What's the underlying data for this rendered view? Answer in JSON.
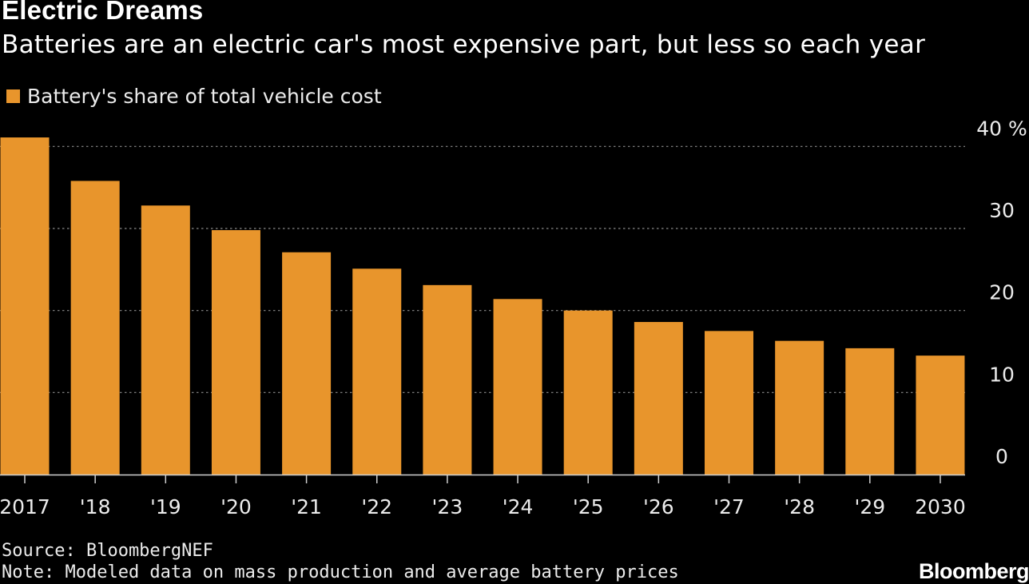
{
  "header": {
    "title": "Electric Dreams",
    "subtitle": "Batteries are an electric car's most expensive part, but less so each year"
  },
  "legend": {
    "label": "Battery's share of total vehicle cost",
    "color": "#e8952c"
  },
  "chart_data": {
    "type": "bar",
    "title": "Electric Dreams",
    "subtitle": "Batteries are an electric car's most expensive part, but less so each year",
    "categories": [
      "2017",
      "'18",
      "'19",
      "'20",
      "'21",
      "'22",
      "'23",
      "'24",
      "'25",
      "'26",
      "'27",
      "'28",
      "'29",
      "2030"
    ],
    "series": [
      {
        "name": "Battery's share of total vehicle cost",
        "values": [
          41.1,
          35.8,
          32.8,
          29.8,
          27.1,
          25.1,
          23.1,
          21.4,
          20.0,
          18.6,
          17.5,
          16.3,
          15.4,
          14.5
        ]
      }
    ],
    "ylim": [
      0,
      43
    ],
    "yticks": [
      0,
      10,
      20,
      30,
      40
    ],
    "ytick_labels": [
      "0",
      "10",
      "20",
      "30",
      "40 %"
    ],
    "yaxis_side": "right",
    "grid": true,
    "xlabel": "",
    "ylabel": "",
    "bar_color": "#e8952c"
  },
  "footer": {
    "source": "Source: BloombergNEF",
    "note": "Note: Modeled data on mass production and average battery prices",
    "brand": "Bloomberg"
  }
}
